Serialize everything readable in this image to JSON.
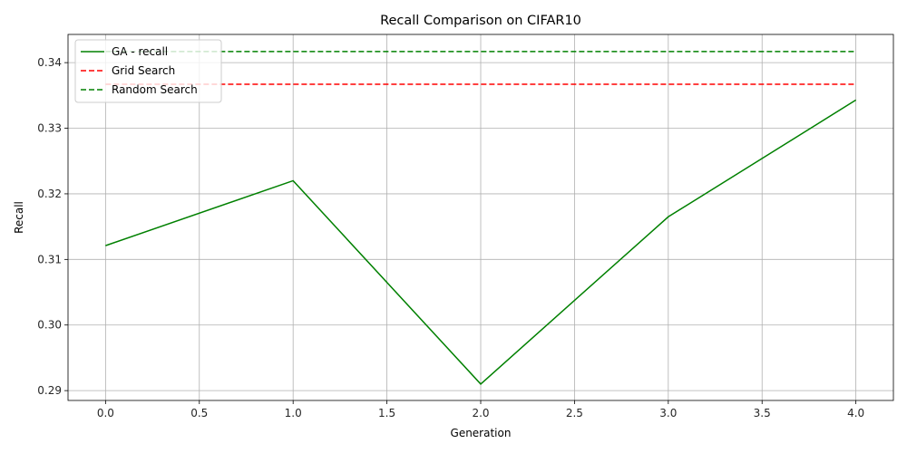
{
  "chart_data": {
    "type": "line",
    "title": "Recall Comparison on CIFAR10",
    "xlabel": "Generation",
    "ylabel": "Recall",
    "xlim": [
      -0.2,
      4.2
    ],
    "ylim": [
      0.2885,
      0.3443
    ],
    "xticks": [
      0.0,
      0.5,
      1.0,
      1.5,
      2.0,
      2.5,
      3.0,
      3.5,
      4.0
    ],
    "xtick_labels": [
      "0.0",
      "0.5",
      "1.0",
      "1.5",
      "2.0",
      "2.5",
      "3.0",
      "3.5",
      "4.0"
    ],
    "yticks": [
      0.29,
      0.3,
      0.31,
      0.32,
      0.33,
      0.34
    ],
    "ytick_labels": [
      "0.29",
      "0.30",
      "0.31",
      "0.32",
      "0.33",
      "0.34"
    ],
    "grid": true,
    "legend_position": "upper-left",
    "series": [
      {
        "name": "GA - recall",
        "style": "solid",
        "color": "#008000",
        "x": [
          0,
          1,
          2,
          3,
          4
        ],
        "y": [
          0.3121,
          0.322,
          0.291,
          0.3165,
          0.3343
        ]
      },
      {
        "name": "Grid Search",
        "style": "dashed",
        "color": "#ff0000",
        "x": [
          0,
          4
        ],
        "y": [
          0.3367,
          0.3367
        ]
      },
      {
        "name": "Random Search",
        "style": "dashed",
        "color": "#008000",
        "x": [
          0,
          4
        ],
        "y": [
          0.3417,
          0.3417
        ]
      }
    ]
  }
}
